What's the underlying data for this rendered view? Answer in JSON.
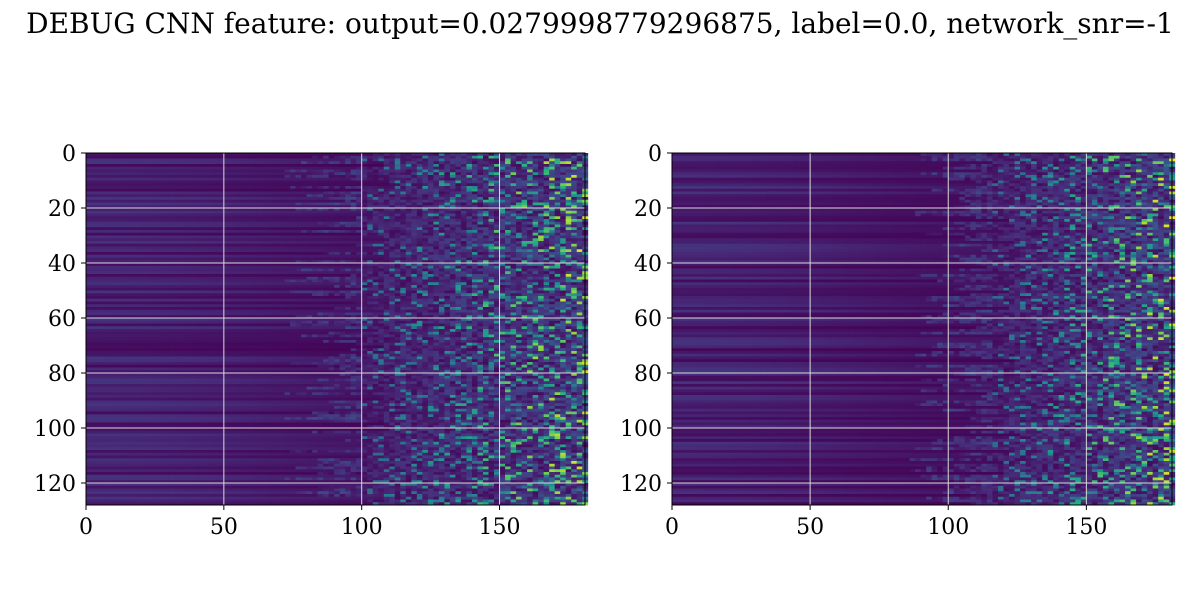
{
  "title": "DEBUG CNN feature: output=0.0279998779296875, label=0.0, network_snr=-1",
  "colors": {
    "colormap": "viridis",
    "background": "#ffffff",
    "grid": "#d9d9d9"
  },
  "chart_data": [
    {
      "type": "heatmap",
      "name": "",
      "xlim": [
        0,
        181
      ],
      "ylim": [
        128,
        0
      ],
      "xticks": [
        0,
        50,
        100,
        150
      ],
      "yticks": [
        0,
        20,
        40,
        60,
        80,
        100,
        120
      ],
      "grid": true,
      "rows": 128,
      "cols": 181,
      "activity_onset_col": 100,
      "peak_region_cols": [
        140,
        181
      ]
    },
    {
      "type": "heatmap",
      "name": "",
      "xlim": [
        0,
        181
      ],
      "ylim": [
        128,
        0
      ],
      "xticks": [
        0,
        50,
        100,
        150
      ],
      "yticks": [
        0,
        20,
        40,
        60,
        80,
        100,
        120
      ],
      "grid": true,
      "rows": 128,
      "cols": 181,
      "activity_onset_col": 115,
      "peak_region_cols": [
        140,
        181
      ]
    }
  ]
}
